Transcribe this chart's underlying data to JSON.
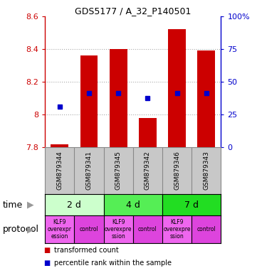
{
  "title": "GDS5177 / A_32_P140501",
  "samples": [
    "GSM879344",
    "GSM879341",
    "GSM879345",
    "GSM879342",
    "GSM879346",
    "GSM879343"
  ],
  "bar_bottoms": [
    7.8,
    7.8,
    7.8,
    7.8,
    7.8,
    7.8
  ],
  "bar_tops": [
    7.82,
    8.36,
    8.4,
    7.98,
    8.52,
    8.39
  ],
  "percentile_values": [
    8.05,
    8.13,
    8.13,
    8.1,
    8.13,
    8.13
  ],
  "ylim_left": [
    7.8,
    8.6
  ],
  "ylim_right": [
    0,
    100
  ],
  "yticks_left": [
    7.8,
    8.0,
    8.2,
    8.4,
    8.6
  ],
  "yticks_right": [
    0,
    25,
    50,
    75,
    100
  ],
  "bar_color": "#cc0000",
  "percentile_color": "#0000cc",
  "time_groups": [
    {
      "label": "2 d",
      "start": 0,
      "end": 2,
      "color": "#ccffcc"
    },
    {
      "label": "4 d",
      "start": 2,
      "end": 4,
      "color": "#55ee55"
    },
    {
      "label": "7 d",
      "start": 4,
      "end": 6,
      "color": "#22dd22"
    }
  ],
  "protocol_groups": [
    {
      "label": "KLF9\noverexpr\nession",
      "start": 0,
      "end": 1,
      "color": "#ee66ee"
    },
    {
      "label": "control",
      "start": 1,
      "end": 2,
      "color": "#dd44dd"
    },
    {
      "label": "KLF9\noverexpre\nssion",
      "start": 2,
      "end": 3,
      "color": "#ee66ee"
    },
    {
      "label": "control",
      "start": 3,
      "end": 4,
      "color": "#dd44dd"
    },
    {
      "label": "KLF9\noverexpre\nssion",
      "start": 4,
      "end": 5,
      "color": "#ee66ee"
    },
    {
      "label": "control",
      "start": 5,
      "end": 6,
      "color": "#dd44dd"
    }
  ],
  "legend_items": [
    {
      "color": "#cc0000",
      "label": "transformed count"
    },
    {
      "color": "#0000cc",
      "label": "percentile rank within the sample"
    }
  ],
  "bar_width": 0.6,
  "grid_color": "#aaaaaa",
  "left_label_color": "#cc0000",
  "right_label_color": "#0000cc",
  "sample_bg_color": "#c8c8c8",
  "sample_border_color": "#888888"
}
